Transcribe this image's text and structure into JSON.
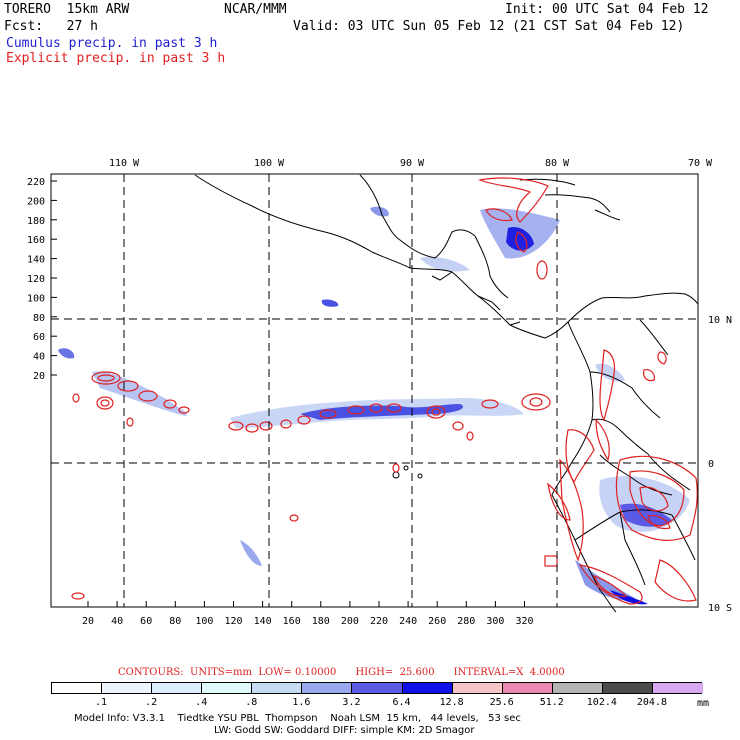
{
  "header": {
    "model": "TORERO  15km ARW",
    "org": "NCAR/MMM",
    "init": "Init: 00 UTC Sat 04 Feb 12",
    "fcst": "Fcst:   27 h",
    "valid": "Valid: 03 UTC Sun 05 Feb 12 (21 CST Sat 04 Feb 12)",
    "cumulus_legend": "Cumulus precip. in past 3 h",
    "explicit_legend": "Explicit precip. in past 3 h",
    "cumulus_color": "#1f1fd0",
    "explicit_color": "#e02020"
  },
  "axes": {
    "lon_labels": [
      "110 W",
      "100 W",
      "90 W",
      "80 W",
      "70 W"
    ],
    "lat_labels": [
      "10 N",
      "0",
      "10 S"
    ],
    "x_ticks": [
      "20",
      "40",
      "60",
      "80",
      "100",
      "120",
      "140",
      "160",
      "180",
      "200",
      "220",
      "240",
      "260",
      "280",
      "300",
      "320"
    ],
    "y_ticks": [
      "220",
      "200",
      "180",
      "160",
      "140",
      "120",
      "100",
      "80",
      "60",
      "40",
      "20"
    ]
  },
  "contours_info": {
    "text": "CONTOURS:  UNITS=mm  LOW= 0.10000      HIGH=  25.600      INTERVAL=X  4.0000"
  },
  "colorbar": {
    "colors": [
      "#ffffff",
      "#eef4ff",
      "#dfeeff",
      "#dffafa",
      "#c6dcf5",
      "#9aa8ee",
      "#5a5ae6",
      "#1010e6",
      "#f6c6c6",
      "#ee88b0",
      "#b4b4b4",
      "#4c4c4c",
      "#d8a8f0"
    ],
    "labels": [
      ".1",
      ".2",
      ".4",
      ".8",
      "1.6",
      "3.2",
      "6.4",
      "12.8",
      "25.6",
      "51.2",
      "102.4",
      "204.8"
    ],
    "units": "mm"
  },
  "footer": {
    "line1": "Model Info: V3.3.1    Tiedtke YSU PBL  Thompson    Noah LSM  15 km,   44 levels,   53 sec",
    "line2": "LW: Godd SW: Goddard DIFF: simple KM: 2D Smagor"
  }
}
